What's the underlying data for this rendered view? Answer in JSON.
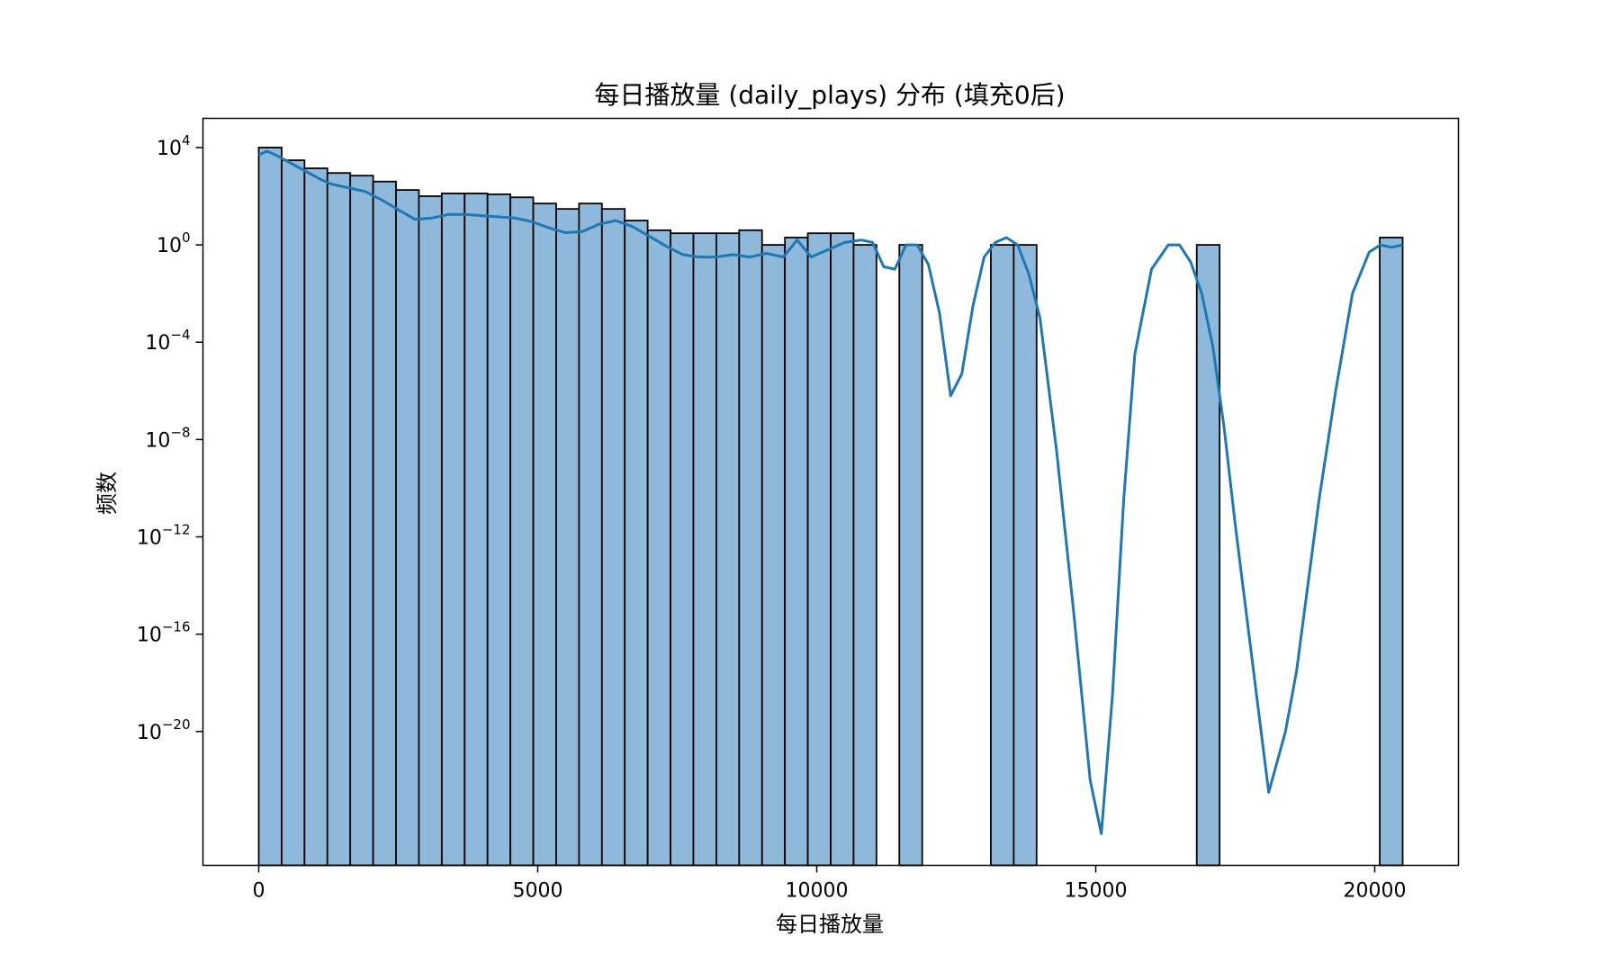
{
  "chart_data": {
    "type": "bar",
    "title": "每日播放量 (daily_plays) 分布 (填充0后)",
    "xlabel": "每日播放量",
    "ylabel": "频数",
    "y_scale": "log",
    "xlim": [
      -1000,
      21500
    ],
    "ylim_exponent": [
      -25.5,
      5.2
    ],
    "x_ticks": [
      0,
      5000,
      10000,
      15000,
      20000
    ],
    "x_tick_labels": [
      "0",
      "5000",
      "10000",
      "15000",
      "20000"
    ],
    "y_tick_exponents": [
      4,
      0,
      -4,
      -8,
      -12,
      -16,
      -20
    ],
    "y_tick_labels": [
      {
        "base": "10",
        "exp": "4"
      },
      {
        "base": "10",
        "exp": "0"
      },
      {
        "base": "10",
        "exp": "−4"
      },
      {
        "base": "10",
        "exp": "−8"
      },
      {
        "base": "10",
        "exp": "−12"
      },
      {
        "base": "10",
        "exp": "−16"
      },
      {
        "base": "10",
        "exp": "−20"
      }
    ],
    "grid": false,
    "colors": {
      "bar_fill": "#8fb9da",
      "bar_edge": "#000000",
      "kde_line": "#1f77b4"
    },
    "bin_width": 410,
    "bin_starts": [
      0,
      410,
      820,
      1230,
      1640,
      2050,
      2460,
      2870,
      3280,
      3690,
      4100,
      4510,
      4920,
      5330,
      5740,
      6150,
      6560,
      6970,
      7380,
      7790,
      8200,
      8610,
      9020,
      9430,
      9840,
      10250,
      10660,
      11480,
      13120,
      13530,
      16810,
      20090
    ],
    "counts": [
      10000,
      3000,
      1400,
      900,
      700,
      400,
      180,
      100,
      130,
      130,
      120,
      90,
      50,
      30,
      50,
      30,
      10,
      4,
      3,
      3,
      3,
      4,
      1,
      2,
      3,
      3,
      1,
      1,
      1,
      1,
      1,
      2
    ],
    "kde": {
      "name": "KDE",
      "x": [
        0,
        150,
        300,
        500,
        700,
        900,
        1100,
        1300,
        1600,
        1900,
        2200,
        2500,
        2800,
        3100,
        3400,
        3700,
        4000,
        4300,
        4600,
        4900,
        5200,
        5500,
        5800,
        6100,
        6400,
        6700,
        7000,
        7300,
        7600,
        7900,
        8200,
        8500,
        8800,
        9100,
        9400,
        9650,
        9900,
        10200,
        10500,
        10800,
        11000,
        11200,
        11400,
        11600,
        11800,
        12000,
        12200,
        12400,
        12600,
        12800,
        13000,
        13200,
        13400,
        13600,
        13800,
        14000,
        14300,
        14600,
        14900,
        15100,
        15300,
        15500,
        15700,
        16000,
        16300,
        16500,
        16700,
        16900,
        17100,
        17300,
        17500,
        17800,
        18100,
        18400,
        18600,
        18800,
        19000,
        19300,
        19600,
        19900,
        20100,
        20300,
        20500
      ],
      "y_exp": [
        3.7,
        3.85,
        3.7,
        3.45,
        3.2,
        2.95,
        2.7,
        2.5,
        2.35,
        2.2,
        1.85,
        1.45,
        1.05,
        1.1,
        1.25,
        1.25,
        1.2,
        1.15,
        1.1,
        0.95,
        0.7,
        0.5,
        0.55,
        0.85,
        1.0,
        0.75,
        0.35,
        -0.05,
        -0.4,
        -0.5,
        -0.5,
        -0.4,
        -0.5,
        -0.35,
        -0.5,
        0.2,
        -0.5,
        -0.2,
        0.1,
        0.2,
        0.1,
        -0.9,
        -1.0,
        0.0,
        0.0,
        -0.8,
        -2.8,
        -6.2,
        -5.3,
        -2.5,
        -0.5,
        0.1,
        0.3,
        0.0,
        -1.2,
        -3.0,
        -8.5,
        -15.0,
        -22.0,
        -24.2,
        -18.5,
        -10.5,
        -4.5,
        -1.0,
        0.0,
        0.0,
        -0.7,
        -2.0,
        -4.2,
        -7.5,
        -11.5,
        -17.0,
        -22.5,
        -20.0,
        -17.5,
        -14.0,
        -10.5,
        -6.0,
        -2.0,
        -0.3,
        0.0,
        -0.1,
        0.0
      ]
    }
  }
}
